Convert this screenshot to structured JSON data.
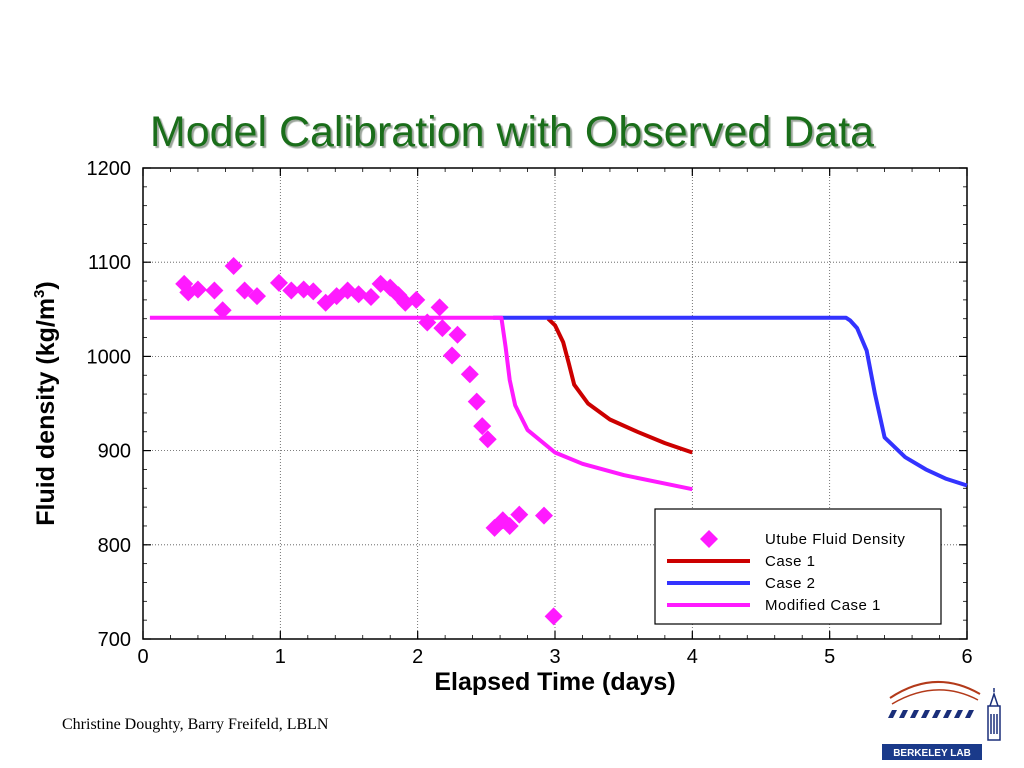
{
  "slide": {
    "title": "Model Calibration with Observed Data",
    "credits": "Christine Doughty, Barry Freifeld, LBLN",
    "logo_text": "BERKELEY LAB"
  },
  "colors": {
    "title": "#1a6e1a",
    "observed": "#ff1aff",
    "case1": "#cc0000",
    "case2": "#3333ff",
    "modified": "#ff1aff"
  },
  "chart_data": {
    "type": "line",
    "xlabel": "Elapsed Time (days)",
    "ylabel": "Fluid density (kg/m3)",
    "ylabel_main": "Fluid density (kg/m",
    "ylabel_sup": "3",
    "ylabel_close": ")",
    "xlim": [
      0,
      6
    ],
    "ylim": [
      700,
      1200
    ],
    "xticks": [
      0,
      1,
      2,
      3,
      4,
      5,
      6
    ],
    "yticks": [
      700,
      800,
      900,
      1000,
      1100,
      1200
    ],
    "grid": true,
    "legend_position": "bottom-right",
    "series": [
      {
        "name": "Utube Fluid Density",
        "kind": "scatter",
        "marker": "diamond",
        "color": "#ff1aff",
        "points": [
          [
            0.3,
            1077
          ],
          [
            0.33,
            1068
          ],
          [
            0.4,
            1071
          ],
          [
            0.52,
            1070
          ],
          [
            0.58,
            1049
          ],
          [
            0.66,
            1096
          ],
          [
            0.74,
            1070
          ],
          [
            0.83,
            1064
          ],
          [
            0.99,
            1078
          ],
          [
            1.08,
            1070
          ],
          [
            1.17,
            1071
          ],
          [
            1.24,
            1069
          ],
          [
            1.33,
            1057
          ],
          [
            1.41,
            1064
          ],
          [
            1.49,
            1070
          ],
          [
            1.57,
            1066
          ],
          [
            1.66,
            1063
          ],
          [
            1.73,
            1077
          ],
          [
            1.8,
            1073
          ],
          [
            1.86,
            1065
          ],
          [
            1.91,
            1057
          ],
          [
            1.99,
            1060
          ],
          [
            2.07,
            1036
          ],
          [
            2.16,
            1052
          ],
          [
            2.18,
            1030
          ],
          [
            2.25,
            1001
          ],
          [
            2.29,
            1023
          ],
          [
            2.38,
            981
          ],
          [
            2.43,
            952
          ],
          [
            2.47,
            926
          ],
          [
            2.51,
            912
          ],
          [
            2.56,
            818
          ],
          [
            2.62,
            826
          ],
          [
            2.67,
            820
          ],
          [
            2.74,
            832
          ],
          [
            2.92,
            831
          ],
          [
            2.99,
            724
          ]
        ]
      },
      {
        "name": "Case 1",
        "kind": "line",
        "color": "#cc0000",
        "points": [
          [
            2.95,
            1040
          ],
          [
            3.0,
            1033
          ],
          [
            3.06,
            1015
          ],
          [
            3.1,
            993
          ],
          [
            3.14,
            970
          ],
          [
            3.24,
            950
          ],
          [
            3.4,
            933
          ],
          [
            3.6,
            920
          ],
          [
            3.8,
            908
          ],
          [
            4.0,
            898
          ]
        ]
      },
      {
        "name": "Case 2",
        "kind": "line",
        "color": "#3333ff",
        "points": [
          [
            2.55,
            1041
          ],
          [
            5.12,
            1041
          ],
          [
            5.15,
            1038
          ],
          [
            5.2,
            1030
          ],
          [
            5.27,
            1006
          ],
          [
            5.33,
            960
          ],
          [
            5.4,
            914
          ],
          [
            5.55,
            893
          ],
          [
            5.7,
            880
          ],
          [
            5.85,
            870
          ],
          [
            6.0,
            863
          ]
        ]
      },
      {
        "name": "Modified Case 1",
        "kind": "line",
        "color": "#ff1aff",
        "points": [
          [
            0.05,
            1041
          ],
          [
            2.61,
            1041
          ],
          [
            2.64,
            1010
          ],
          [
            2.67,
            975
          ],
          [
            2.71,
            948
          ],
          [
            2.8,
            922
          ],
          [
            3.0,
            898
          ],
          [
            3.2,
            886
          ],
          [
            3.5,
            874
          ],
          [
            3.8,
            865
          ],
          [
            4.0,
            859
          ]
        ]
      }
    ]
  }
}
